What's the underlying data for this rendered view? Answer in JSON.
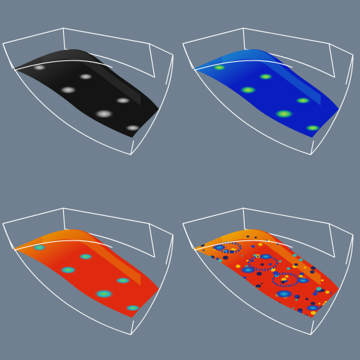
{
  "background": "#708090",
  "frame_color": "#ffffff",
  "panels": [
    {
      "id": "panel-1",
      "name": "black-shaded-surface",
      "base": "#141414",
      "highlight": "#444444",
      "spot_outer": "#7a7a7a",
      "spot_inner": "#d6d6d6",
      "noise": false
    },
    {
      "id": "panel-2",
      "name": "blue-colormap-surface",
      "base": "#0a1dc0",
      "highlight": "#1f9fd0",
      "spot_outer": "#1fb070",
      "spot_inner": "#c4e23a",
      "noise": false
    },
    {
      "id": "panel-3",
      "name": "red-colormap-surface",
      "base": "#e02a10",
      "highlight": "#e8b000",
      "spot_outer": "#18b4d0",
      "spot_inner": "#7fd03a",
      "noise": false
    },
    {
      "id": "panel-4",
      "name": "noisy-colormap-surface",
      "base": "#e02a10",
      "highlight": "#f0d000",
      "spot_outer": "#1040c0",
      "spot_inner": "#20c0c0",
      "noise": true
    }
  ]
}
